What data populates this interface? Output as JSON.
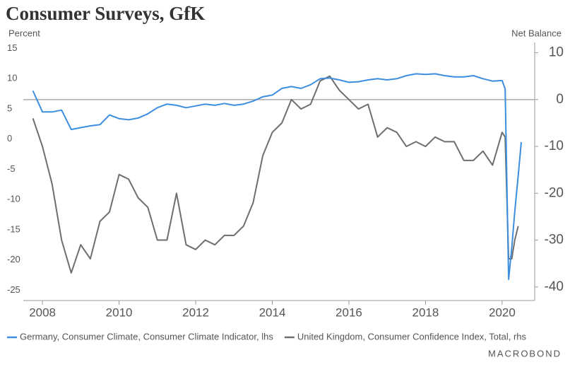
{
  "chart_data": {
    "type": "line",
    "title": "Consumer Surveys, GfK",
    "ylabel": "Percent",
    "y2label": "Net Balance",
    "source": "MACROBOND",
    "x": [
      2007.75,
      2008,
      2008.25,
      2008.5,
      2008.75,
      2009,
      2009.25,
      2009.5,
      2009.75,
      2010,
      2010.25,
      2010.5,
      2010.75,
      2011,
      2011.25,
      2011.5,
      2011.75,
      2012,
      2012.25,
      2012.5,
      2012.75,
      2013,
      2013.25,
      2013.5,
      2013.75,
      2014,
      2014.25,
      2014.5,
      2014.75,
      2015,
      2015.25,
      2015.5,
      2015.75,
      2016,
      2016.25,
      2016.5,
      2016.75,
      2017,
      2017.25,
      2017.5,
      2017.75,
      2018,
      2018.25,
      2018.5,
      2018.75,
      2019,
      2019.25,
      2019.5,
      2019.75,
      2020,
      2020.08,
      2020.17,
      2020.25,
      2020.33,
      2020.42,
      2020.5
    ],
    "series": [
      {
        "name": "Germany, Consumer Climate, Consumer Climate Indicator, lhs",
        "color": "#3d8ee0",
        "values": [
          8.0,
          4.5,
          4.5,
          4.8,
          1.6,
          1.9,
          2.2,
          2.4,
          4.0,
          3.4,
          3.2,
          3.5,
          4.2,
          5.2,
          5.8,
          5.6,
          5.2,
          5.5,
          5.8,
          5.6,
          5.9,
          5.6,
          5.8,
          6.3,
          7.0,
          7.3,
          8.4,
          8.7,
          8.4,
          9.0,
          10.0,
          10.1,
          9.8,
          9.4,
          9.5,
          9.8,
          10.0,
          9.8,
          10.0,
          10.5,
          10.8,
          10.7,
          10.8,
          10.5,
          10.3,
          10.3,
          10.5,
          10.0,
          9.6,
          9.7,
          8.3,
          -23.2,
          -18,
          -12,
          -6,
          -0.5
        ]
      },
      {
        "name": "United Kingdom, Consumer Confidence Index, Total, rhs",
        "color": "#6e6e6e",
        "axis": "y2",
        "values": [
          -4,
          -10,
          -18,
          -30,
          -37,
          -31,
          -34,
          -26,
          -24,
          -16,
          -17,
          -21,
          -23,
          -30,
          -30,
          -20,
          -31,
          -32,
          -30,
          -31,
          -29,
          -29,
          -27,
          -22,
          -12,
          -7,
          -5,
          0,
          -2,
          -1,
          4,
          5,
          2,
          0,
          -2,
          -1,
          -8,
          -6,
          -7,
          -10,
          -9,
          -10,
          -8,
          -9,
          -9,
          -13,
          -13,
          -11,
          -14,
          -7,
          -8,
          -34,
          -34,
          -30,
          -27,
          null
        ]
      }
    ],
    "xlim": [
      2007.5,
      2020.85
    ],
    "xticks": [
      2008,
      2010,
      2012,
      2014,
      2016,
      2018,
      2020
    ],
    "ylim": [
      -26.7,
      16
    ],
    "yticks": [
      15,
      10,
      5,
      0,
      -5,
      -10,
      -15,
      -20,
      -25
    ],
    "y2lim": [
      -42.9,
      12.2
    ],
    "y2ticks": [
      10,
      0,
      -10,
      -20,
      -30,
      -40
    ],
    "y2_zero_line": true
  }
}
